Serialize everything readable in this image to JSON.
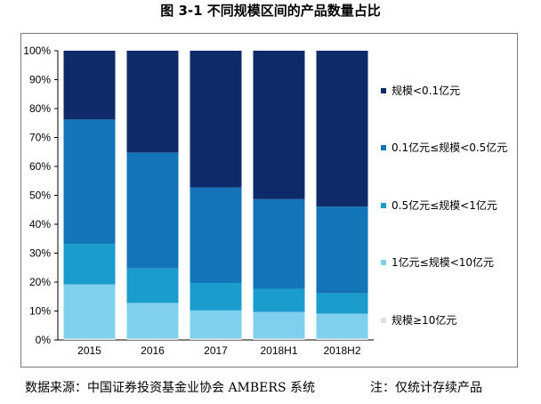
{
  "figure": {
    "title": "图 3-1  不同规模区间的产品数量占比"
  },
  "footer": {
    "source": "数据来源：中国证券投资基金业协会 AMBERS 系统",
    "note": "注：仅统计存续产品"
  },
  "chart_data": {
    "type": "bar",
    "stacked": true,
    "categories": [
      "2015",
      "2016",
      "2017",
      "2018H1",
      "2018H2"
    ],
    "y_ticks": [
      "0%",
      "10%",
      "20%",
      "30%",
      "40%",
      "50%",
      "60%",
      "70%",
      "80%",
      "90%",
      "100%"
    ],
    "ylim": [
      0,
      100
    ],
    "grid": false,
    "legend_position": "right",
    "series": [
      {
        "name": "规模≥10亿元",
        "color": "#e0e0e0",
        "values": [
          0.5,
          0.5,
          0.5,
          0.5,
          0.5
        ]
      },
      {
        "name": "1亿元≤规模<10亿元",
        "color": "#7fd0ee",
        "values": [
          18.7,
          12.3,
          9.7,
          9.2,
          8.6
        ]
      },
      {
        "name": "0.5亿元≤规模<1亿元",
        "color": "#1a9ccc",
        "values": [
          14.0,
          12.0,
          9.5,
          8.0,
          7.0
        ]
      },
      {
        "name": "0.1亿元≤规模<0.5亿元",
        "color": "#1474b8",
        "values": [
          43.0,
          40.0,
          33.0,
          31.0,
          30.0
        ]
      },
      {
        "name": "规模<0.1亿元",
        "color": "#0f2a68",
        "values": [
          23.8,
          35.2,
          47.3,
          51.3,
          53.9
        ]
      }
    ]
  }
}
